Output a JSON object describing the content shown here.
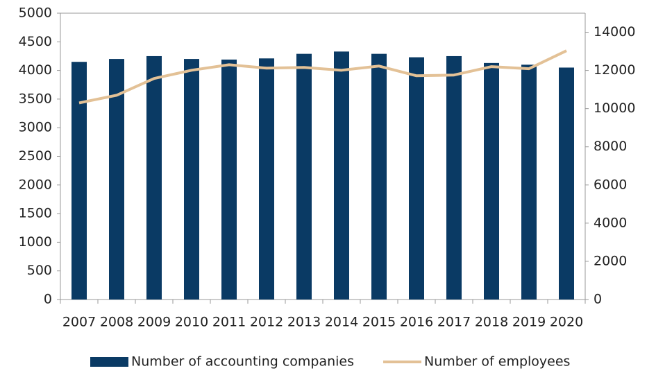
{
  "chart_data": {
    "type": "bar_line",
    "categories": [
      "2007",
      "2008",
      "2009",
      "2010",
      "2011",
      "2012",
      "2013",
      "2014",
      "2015",
      "2016",
      "2017",
      "2018",
      "2019",
      "2020"
    ],
    "series": [
      {
        "name": "Number of accounting companies",
        "color": "#0a3a64",
        "type": "bar",
        "values": [
          4150,
          4200,
          4250,
          4200,
          4190,
          4210,
          4290,
          4330,
          4290,
          4230,
          4250,
          4130,
          4100,
          4050
        ]
      },
      {
        "name": "Number of employees",
        "color": "#e3c196",
        "type": "line",
        "axis": "y2",
        "values": [
          10300,
          10700,
          11580,
          12010,
          12300,
          12120,
          12160,
          12010,
          12230,
          11720,
          11760,
          12200,
          12090,
          13030
        ]
      }
    ],
    "ylim": [
      0,
      5000
    ],
    "yticks": [
      0,
      500,
      1000,
      1500,
      2000,
      2500,
      3000,
      3500,
      4000,
      4500,
      5000
    ],
    "y2lim": [
      0,
      15000
    ],
    "y2ticks": [
      0,
      2000,
      4000,
      6000,
      8000,
      10000,
      12000,
      14000
    ],
    "legend": "bottom"
  }
}
